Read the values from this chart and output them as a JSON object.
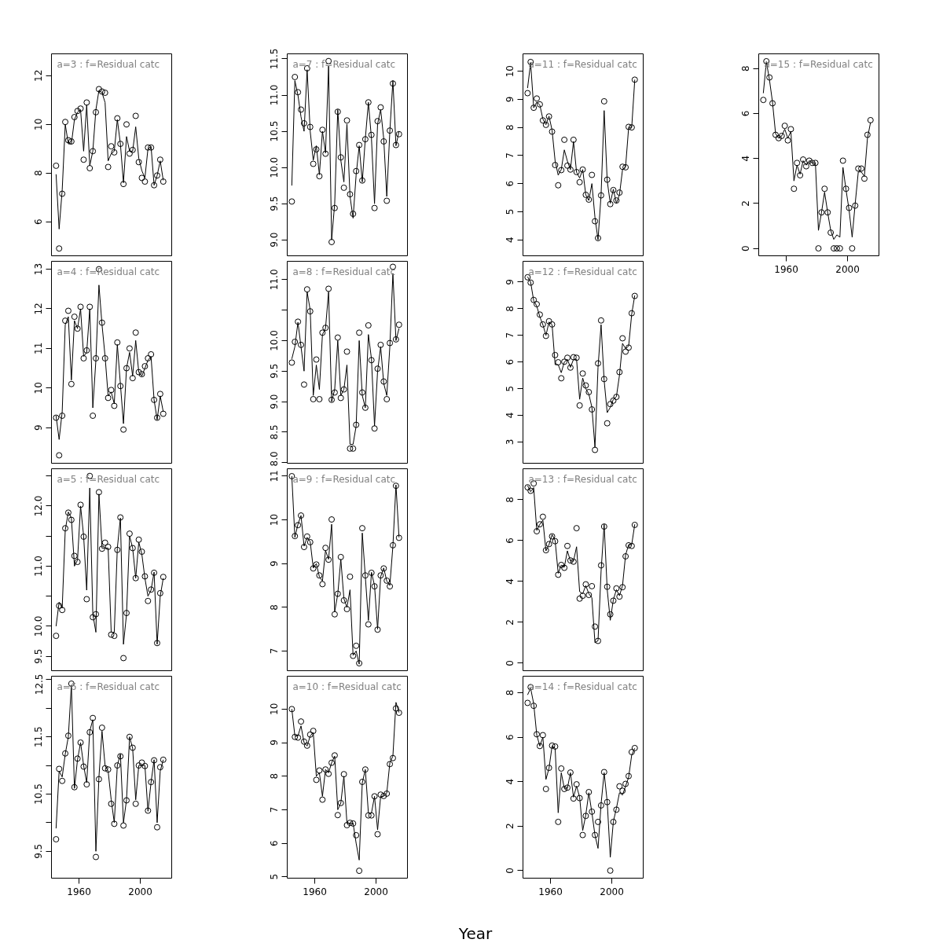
{
  "chart_data": [
    {
      "type": "scatter",
      "title": "a=3 : f=Residual catc",
      "tick_labels": "y",
      "xlim": [
        1942,
        2020.5
      ],
      "ylim": [
        4.6,
        12.9
      ],
      "yticks": [
        6,
        8,
        10,
        12
      ],
      "x": [
        1945,
        1947,
        1949,
        1951,
        1953,
        1955,
        1957,
        1959,
        1961,
        1963,
        1965,
        1967,
        1969,
        1971,
        1973,
        1975,
        1977,
        1979,
        1981,
        1983,
        1985,
        1987,
        1989,
        1991,
        1993,
        1995,
        1997,
        1999,
        2001,
        2003,
        2005,
        2007,
        2009,
        2011,
        2013,
        2015
      ],
      "series": [
        {
          "marker": "circle",
          "color": "#000000",
          "values": [
            8.3,
            4.9,
            7.15,
            10.1,
            9.35,
            9.3,
            10.3,
            10.55,
            10.65,
            8.55,
            10.9,
            8.2,
            8.9,
            10.5,
            11.45,
            11.35,
            11.3,
            8.25,
            9.1,
            8.85,
            10.25,
            9.2,
            7.55,
            10.0,
            8.8,
            8.95,
            10.35,
            8.45,
            7.8,
            7.65,
            9.05,
            9.05,
            7.5,
            7.9,
            8.55,
            7.65
          ]
        },
        {
          "type": "line",
          "color": "#000000",
          "values": [
            7.95,
            5.7,
            7.3,
            10.0,
            9.2,
            9.2,
            10.2,
            10.5,
            10.6,
            8.9,
            10.8,
            8.3,
            8.9,
            10.6,
            11.4,
            11.3,
            10.9,
            8.5,
            8.8,
            8.9,
            10.2,
            9.2,
            7.6,
            9.5,
            8.9,
            8.9,
            9.9,
            8.6,
            8.1,
            7.8,
            9.0,
            9.1,
            7.5,
            7.9,
            8.5,
            7.7
          ]
        }
      ]
    },
    {
      "type": "scatter",
      "title": "a=4 : f=Residual catc",
      "tick_labels": "y",
      "xlim": [
        1942,
        2020.5
      ],
      "ylim": [
        8.1,
        13.2
      ],
      "yticks": [
        9,
        10,
        11,
        12,
        13
      ],
      "x": [
        1945,
        1947,
        1949,
        1951,
        1953,
        1955,
        1957,
        1959,
        1961,
        1963,
        1965,
        1967,
        1969,
        1971,
        1973,
        1975,
        1977,
        1979,
        1981,
        1983,
        1985,
        1987,
        1989,
        1991,
        1993,
        1995,
        1997,
        1999,
        2001,
        2003,
        2005,
        2007,
        2009,
        2011,
        2013,
        2015
      ],
      "series": [
        {
          "marker": "circle",
          "color": "#000000",
          "values": [
            9.25,
            8.3,
            9.3,
            11.7,
            11.95,
            10.1,
            11.8,
            11.5,
            12.05,
            10.75,
            10.95,
            12.05,
            9.3,
            10.75,
            13.0,
            11.65,
            10.75,
            9.75,
            9.95,
            9.55,
            11.15,
            10.05,
            8.95,
            10.5,
            11.0,
            10.25,
            11.4,
            10.4,
            10.35,
            10.55,
            10.75,
            10.85,
            9.7,
            9.25,
            9.85,
            9.35
          ]
        },
        {
          "type": "line",
          "color": "#000000",
          "values": [
            9.3,
            8.7,
            9.4,
            11.6,
            11.8,
            10.2,
            11.7,
            11.5,
            12.0,
            10.8,
            10.9,
            12.0,
            9.5,
            10.7,
            12.6,
            11.6,
            10.8,
            9.8,
            9.9,
            9.6,
            11.1,
            10.1,
            9.1,
            10.5,
            10.9,
            10.3,
            11.2,
            10.4,
            10.3,
            10.5,
            10.7,
            10.8,
            9.7,
            9.2,
            9.8,
            9.4
          ]
        }
      ]
    },
    {
      "type": "scatter",
      "title": "a=5 : f=Residual catc",
      "tick_labels": "y",
      "xlim": [
        1942,
        2020.5
      ],
      "ylim": [
        9.26,
        12.62
      ],
      "yticks": [
        9.5,
        {
          "value": 10,
          "label": "10.0"
        },
        {
          "value": 10.5,
          "label": null
        },
        {
          "value": 11,
          "label": "11.0"
        },
        {
          "value": 11.5,
          "label": null
        },
        {
          "value": 12,
          "label": "12.0"
        },
        {
          "value": 12.5,
          "label": null
        }
      ],
      "x": [
        1945,
        1947,
        1949,
        1951,
        1953,
        1955,
        1957,
        1959,
        1961,
        1963,
        1965,
        1967,
        1969,
        1971,
        1973,
        1975,
        1977,
        1979,
        1981,
        1983,
        1985,
        1987,
        1989,
        1991,
        1993,
        1995,
        1997,
        1999,
        2001,
        2003,
        2005,
        2007,
        2009,
        2011,
        2013,
        2015
      ],
      "series": [
        {
          "marker": "circle",
          "color": "#000000",
          "values": [
            9.84,
            10.34,
            10.27,
            11.63,
            11.89,
            11.77,
            11.17,
            11.07,
            12.02,
            11.49,
            10.45,
            12.5,
            10.15,
            10.2,
            12.23,
            11.29,
            11.39,
            11.32,
            9.86,
            9.84,
            11.27,
            11.81,
            9.47,
            10.22,
            11.54,
            11.3,
            10.8,
            11.44,
            11.24,
            10.83,
            10.42,
            10.61,
            10.89,
            9.72,
            10.55,
            10.82
          ]
        },
        {
          "type": "line",
          "color": "#000000",
          "values": [
            10.0,
            10.4,
            10.3,
            11.6,
            11.9,
            11.8,
            11.0,
            11.1,
            12.0,
            11.5,
            10.6,
            12.3,
            10.2,
            9.9,
            12.2,
            11.3,
            11.3,
            11.3,
            9.9,
            9.9,
            11.3,
            11.8,
            9.7,
            10.2,
            11.5,
            11.3,
            10.8,
            11.4,
            11.2,
            10.8,
            10.5,
            10.6,
            10.9,
            9.7,
            10.5,
            10.8
          ]
        }
      ]
    },
    {
      "type": "scatter",
      "title": "a=6 : f=Residual catc",
      "xlim": [
        1942,
        2020.5
      ],
      "xticks": [
        1960,
        2000
      ],
      "ylim": [
        9.03,
        12.56
      ],
      "yticks": [
        9.5,
        {
          "value": 10,
          "label": null
        },
        10.5,
        {
          "value": 11,
          "label": null
        },
        11.5,
        {
          "value": 12,
          "label": null
        },
        12.5
      ],
      "x": [
        1945,
        1947,
        1949,
        1951,
        1953,
        1955,
        1957,
        1959,
        1961,
        1963,
        1965,
        1967,
        1969,
        1971,
        1973,
        1975,
        1977,
        1979,
        1981,
        1983,
        1985,
        1987,
        1989,
        1991,
        1993,
        1995,
        1997,
        1999,
        2001,
        2003,
        2005,
        2007,
        2009,
        2011,
        2013,
        2015
      ],
      "series": [
        {
          "marker": "circle",
          "color": "#000000",
          "values": [
            9.71,
            10.94,
            10.73,
            11.21,
            11.52,
            12.43,
            10.62,
            11.12,
            11.4,
            10.98,
            10.67,
            11.58,
            11.83,
            9.4,
            10.76,
            11.66,
            10.95,
            10.93,
            10.33,
            9.98,
            11.0,
            11.16,
            9.95,
            10.39,
            11.5,
            11.31,
            10.33,
            11.0,
            11.05,
            10.99,
            10.21,
            10.71,
            11.09,
            9.92,
            10.97,
            11.1
          ]
        },
        {
          "type": "line",
          "color": "#000000",
          "values": [
            9.9,
            10.9,
            10.8,
            11.2,
            11.5,
            12.4,
            10.6,
            11.1,
            11.4,
            11.0,
            10.7,
            11.6,
            11.8,
            9.5,
            10.8,
            11.6,
            11.0,
            10.9,
            10.4,
            10.0,
            11.0,
            11.2,
            10.0,
            10.4,
            11.5,
            11.3,
            10.4,
            11.0,
            11.0,
            11.0,
            10.2,
            10.7,
            11.1,
            10.0,
            10.9,
            11.1
          ]
        }
      ]
    },
    {
      "type": "scatter",
      "title": "a=7 : f=Residual catc",
      "tick_labels": "y",
      "xlim": [
        1942,
        2020.5
      ],
      "ylim": [
        8.78,
        11.57
      ],
      "yticks": [
        {
          "value": 9,
          "label": "9.0"
        },
        9.5,
        {
          "value": 10,
          "label": "10.0"
        },
        10.5,
        {
          "value": 11,
          "label": "11.0"
        },
        11.5
      ],
      "x": [
        1945,
        1947,
        1949,
        1951,
        1953,
        1955,
        1957,
        1959,
        1961,
        1963,
        1965,
        1967,
        1969,
        1971,
        1973,
        1975,
        1977,
        1979,
        1981,
        1983,
        1985,
        1987,
        1989,
        1991,
        1993,
        1995,
        1997,
        1999,
        2001,
        2003,
        2005,
        2007,
        2009,
        2011,
        2013,
        2015
      ],
      "series": [
        {
          "marker": "circle",
          "color": "#000000",
          "values": [
            9.53,
            11.25,
            11.04,
            10.8,
            10.61,
            11.37,
            10.56,
            10.05,
            10.25,
            9.88,
            10.52,
            10.19,
            11.47,
            8.97,
            9.44,
            10.77,
            10.14,
            9.72,
            10.65,
            9.63,
            9.36,
            9.95,
            10.31,
            9.82,
            10.39,
            10.9,
            10.45,
            9.44,
            10.64,
            10.83,
            10.36,
            9.54,
            10.51,
            11.16,
            10.31,
            10.46
          ]
        },
        {
          "type": "line",
          "color": "#000000",
          "values": [
            9.75,
            11.2,
            11.0,
            10.7,
            10.5,
            11.35,
            10.5,
            10.1,
            10.3,
            9.9,
            10.5,
            10.2,
            11.4,
            9.0,
            9.5,
            10.8,
            10.1,
            9.8,
            10.6,
            9.6,
            9.3,
            9.9,
            10.3,
            9.8,
            10.4,
            10.9,
            10.4,
            9.5,
            10.6,
            10.8,
            10.4,
            9.6,
            10.5,
            11.2,
            10.3,
            10.5
          ]
        }
      ]
    },
    {
      "type": "scatter",
      "title": "a=8 : f=Residual catc",
      "tick_labels": "y",
      "xlim": [
        1942,
        2020.5
      ],
      "ylim": [
        7.99,
        11.3
      ],
      "yticks": [
        {
          "value": 8,
          "label": "8.0"
        },
        8.5,
        {
          "value": 9,
          "label": "9.0"
        },
        9.5,
        {
          "value": 10,
          "label": "10.0"
        },
        {
          "value": 10.5,
          "label": null
        },
        {
          "value": 11,
          "label": "11.0"
        }
      ],
      "x": [
        1945,
        1947,
        1949,
        1951,
        1953,
        1955,
        1957,
        1959,
        1961,
        1963,
        1965,
        1967,
        1969,
        1971,
        1973,
        1975,
        1977,
        1979,
        1981,
        1983,
        1985,
        1987,
        1989,
        1991,
        1993,
        1995,
        1997,
        1999,
        2001,
        2003,
        2005,
        2007,
        2009,
        2011,
        2013,
        2015
      ],
      "series": [
        {
          "marker": "circle",
          "color": "#000000",
          "values": [
            9.64,
            9.98,
            10.31,
            9.93,
            9.28,
            10.84,
            10.48,
            9.04,
            9.69,
            9.04,
            10.13,
            10.21,
            10.85,
            9.03,
            9.15,
            10.05,
            9.06,
            9.2,
            9.82,
            8.23,
            8.23,
            8.62,
            10.13,
            9.15,
            8.9,
            10.25,
            9.68,
            8.56,
            9.54,
            9.93,
            9.33,
            9.04,
            9.96,
            11.21,
            10.02,
            10.26
          ]
        },
        {
          "type": "line",
          "color": "#000000",
          "values": [
            9.7,
            9.9,
            10.3,
            9.9,
            9.5,
            10.8,
            10.5,
            9.1,
            9.6,
            9.2,
            10.1,
            10.2,
            10.8,
            9.0,
            9.2,
            10.0,
            9.1,
            9.2,
            9.6,
            8.3,
            8.3,
            8.6,
            10.0,
            9.1,
            8.9,
            10.1,
            9.7,
            8.6,
            9.5,
            9.9,
            9.3,
            9.1,
            9.9,
            11.1,
            10.0,
            10.2
          ]
        }
      ]
    },
    {
      "type": "scatter",
      "title": "a=9 : f=Residual catc",
      "tick_labels": "y",
      "xlim": [
        1942,
        2020.5
      ],
      "ylim": [
        6.55,
        11.17
      ],
      "yticks": [
        7,
        8,
        9,
        10,
        11
      ],
      "x": [
        1945,
        1947,
        1949,
        1951,
        1953,
        1955,
        1957,
        1959,
        1961,
        1963,
        1965,
        1967,
        1969,
        1971,
        1973,
        1975,
        1977,
        1979,
        1981,
        1983,
        1985,
        1987,
        1989,
        1991,
        1993,
        1995,
        1997,
        1999,
        2001,
        2003,
        2005,
        2007,
        2009,
        2011,
        2013,
        2015
      ],
      "series": [
        {
          "marker": "circle",
          "color": "#000000",
          "values": [
            11.0,
            9.63,
            9.88,
            10.1,
            9.38,
            9.62,
            9.49,
            8.89,
            8.98,
            8.73,
            8.53,
            9.36,
            9.09,
            10.01,
            7.84,
            8.31,
            9.15,
            8.16,
            7.96,
            8.7,
            6.89,
            7.12,
            6.72,
            9.81,
            8.73,
            7.61,
            8.79,
            8.48,
            7.49,
            8.73,
            8.89,
            8.61,
            8.48,
            9.42,
            10.78,
            9.59
          ]
        },
        {
          "type": "line",
          "color": "#000000",
          "values": [
            11.0,
            9.6,
            9.9,
            10.1,
            9.4,
            9.6,
            9.5,
            8.9,
            9.0,
            8.7,
            8.6,
            9.3,
            9.1,
            9.9,
            7.9,
            8.3,
            9.1,
            8.2,
            8.0,
            8.4,
            6.9,
            7.0,
            6.7,
            9.7,
            8.7,
            7.7,
            8.8,
            8.5,
            7.5,
            8.7,
            8.9,
            8.6,
            8.5,
            9.4,
            10.8,
            9.6
          ]
        }
      ]
    },
    {
      "type": "scatter",
      "title": "a=10 : f=Residual catc",
      "xlabel": "Year",
      "xlim": [
        1942,
        2020.5
      ],
      "xticks": [
        1960,
        2000
      ],
      "ylim": [
        4.96,
        10.98
      ],
      "yticks": [
        5,
        6,
        7,
        8,
        9,
        10
      ],
      "x": [
        1945,
        1947,
        1949,
        1951,
        1953,
        1955,
        1957,
        1959,
        1961,
        1963,
        1965,
        1967,
        1969,
        1971,
        1973,
        1975,
        1977,
        1979,
        1981,
        1983,
        1985,
        1987,
        1989,
        1991,
        1993,
        1995,
        1997,
        1999,
        2001,
        2003,
        2005,
        2007,
        2009,
        2011,
        2013,
        2015
      ],
      "series": [
        {
          "marker": "circle",
          "color": "#000000",
          "values": [
            10.0,
            9.17,
            9.15,
            9.63,
            9.03,
            8.91,
            9.24,
            9.35,
            7.89,
            8.17,
            7.3,
            8.2,
            8.07,
            8.4,
            8.62,
            6.84,
            7.2,
            8.06,
            6.54,
            6.61,
            6.59,
            6.24,
            5.18,
            7.83,
            8.2,
            6.83,
            6.83,
            7.4,
            6.27,
            7.45,
            7.41,
            7.48,
            8.36,
            8.54,
            10.02,
            9.89
          ]
        },
        {
          "type": "line",
          "color": "#000000",
          "values": [
            10.0,
            9.2,
            9.2,
            9.5,
            9.0,
            8.9,
            9.2,
            9.3,
            8.0,
            8.1,
            7.4,
            8.2,
            8.1,
            8.4,
            8.6,
            7.0,
            7.2,
            8.0,
            6.6,
            6.6,
            6.6,
            6.0,
            5.5,
            7.8,
            8.2,
            6.9,
            6.9,
            7.4,
            6.4,
            7.4,
            7.4,
            7.5,
            8.4,
            8.6,
            10.2,
            9.9
          ]
        }
      ]
    },
    {
      "type": "scatter",
      "title": "a=11 : f=Residual catc",
      "tick_labels": "y",
      "xlim": [
        1942,
        2020.5
      ],
      "ylim": [
        3.43,
        10.62
      ],
      "yticks": [
        4,
        5,
        6,
        7,
        8,
        9,
        10
      ],
      "x": [
        1945,
        1947,
        1949,
        1951,
        1953,
        1955,
        1957,
        1959,
        1961,
        1963,
        1965,
        1967,
        1969,
        1971,
        1973,
        1975,
        1977,
        1979,
        1981,
        1983,
        1985,
        1987,
        1989,
        1991,
        1993,
        1995,
        1997,
        1999,
        2001,
        2003,
        2005,
        2007,
        2009,
        2011,
        2013,
        2015
      ],
      "series": [
        {
          "marker": "circle",
          "color": "#000000",
          "values": [
            9.22,
            10.33,
            8.7,
            9.03,
            8.82,
            8.25,
            8.09,
            8.39,
            7.85,
            6.66,
            5.94,
            6.48,
            7.56,
            6.64,
            6.5,
            7.56,
            6.41,
            6.05,
            6.5,
            5.6,
            5.43,
            6.31,
            4.66,
            4.06,
            5.58,
            8.93,
            6.14,
            5.27,
            5.77,
            5.4,
            5.68,
            6.6,
            6.58,
            8.02,
            8.0,
            9.7
          ]
        },
        {
          "type": "line",
          "color": "#000000",
          "values": [
            9.4,
            10.3,
            8.7,
            8.9,
            8.8,
            8.3,
            8.1,
            8.4,
            7.9,
            6.8,
            6.3,
            6.5,
            7.2,
            6.8,
            6.5,
            7.5,
            6.4,
            6.2,
            6.5,
            5.6,
            5.4,
            6.0,
            4.8,
            4.0,
            5.6,
            8.6,
            6.1,
            5.3,
            5.8,
            5.3,
            5.6,
            6.5,
            6.6,
            8.0,
            8.0,
            9.7
          ]
        }
      ]
    },
    {
      "type": "scatter",
      "title": "a=12 : f=Residual catc",
      "tick_labels": "y",
      "xlim": [
        1942,
        2020.5
      ],
      "ylim": [
        2.2,
        9.78
      ],
      "yticks": [
        3,
        4,
        5,
        6,
        7,
        8,
        9
      ],
      "x": [
        1945,
        1947,
        1949,
        1951,
        1953,
        1955,
        1957,
        1959,
        1961,
        1963,
        1965,
        1967,
        1969,
        1971,
        1973,
        1975,
        1977,
        1979,
        1981,
        1983,
        1985,
        1987,
        1989,
        1991,
        1993,
        1995,
        1997,
        1999,
        2001,
        2003,
        2005,
        2007,
        2009,
        2011,
        2013,
        2015
      ],
      "series": [
        {
          "marker": "circle",
          "color": "#000000",
          "values": [
            9.18,
            8.98,
            8.33,
            8.17,
            7.78,
            7.41,
            6.98,
            7.53,
            7.41,
            6.26,
            5.99,
            5.39,
            6.01,
            6.16,
            5.79,
            6.18,
            6.16,
            4.37,
            5.57,
            5.12,
            4.87,
            4.22,
            2.7,
            5.95,
            7.56,
            5.36,
            3.7,
            4.42,
            4.55,
            4.69,
            5.62,
            6.89,
            6.39,
            6.54,
            7.83,
            8.48
          ]
        },
        {
          "type": "line",
          "color": "#000000",
          "values": [
            9.2,
            9.0,
            8.3,
            8.1,
            7.7,
            7.4,
            7.0,
            7.5,
            7.4,
            5.9,
            5.9,
            5.6,
            6.0,
            6.1,
            5.8,
            6.1,
            6.1,
            4.6,
            5.4,
            5.0,
            4.8,
            4.3,
            2.8,
            5.8,
            7.4,
            5.3,
            4.1,
            4.3,
            4.6,
            4.7,
            5.5,
            6.7,
            6.5,
            6.6,
            7.8,
            8.5
          ]
        }
      ]
    },
    {
      "type": "scatter",
      "title": "a=13 : f=Residual catc",
      "tick_labels": "y",
      "xlim": [
        1942,
        2020.5
      ],
      "ylim": [
        -0.37,
        9.52
      ],
      "yticks": [
        0,
        2,
        4,
        6,
        8
      ],
      "x": [
        1945,
        1947,
        1949,
        1951,
        1953,
        1955,
        1957,
        1959,
        1961,
        1963,
        1965,
        1967,
        1969,
        1971,
        1973,
        1975,
        1977,
        1979,
        1981,
        1983,
        1985,
        1987,
        1989,
        1991,
        1993,
        1995,
        1997,
        1999,
        2001,
        2003,
        2005,
        2007,
        2009,
        2011,
        2013,
        2015
      ],
      "series": [
        {
          "marker": "circle",
          "color": "#000000",
          "values": [
            8.61,
            8.44,
            8.8,
            6.46,
            6.8,
            7.17,
            5.53,
            5.83,
            6.21,
            5.97,
            4.33,
            4.81,
            4.67,
            5.74,
            5.03,
            4.97,
            6.61,
            3.16,
            3.3,
            3.86,
            3.34,
            3.77,
            1.79,
            1.09,
            4.79,
            6.69,
            3.74,
            2.39,
            3.06,
            3.66,
            3.26,
            3.72,
            5.23,
            5.77,
            5.74,
            6.77
          ]
        },
        {
          "type": "line",
          "color": "#000000",
          "values": [
            8.7,
            8.4,
            8.6,
            6.5,
            6.8,
            7.0,
            5.5,
            5.8,
            6.3,
            6.0,
            4.4,
            4.8,
            4.7,
            5.5,
            5.0,
            5.0,
            5.7,
            3.5,
            3.4,
            3.8,
            3.4,
            3.2,
            1.0,
            1.1,
            4.5,
            6.8,
            3.6,
            2.1,
            3.1,
            3.6,
            3.3,
            3.8,
            5.3,
            5.8,
            5.8,
            6.8
          ]
        }
      ]
    },
    {
      "type": "scatter",
      "title": "a=14 : f=Residual catc",
      "xlim": [
        1942,
        2020.5
      ],
      "xticks": [
        1960,
        2000
      ],
      "ylim": [
        -0.34,
        8.74
      ],
      "yticks": [
        0,
        2,
        4,
        6,
        8
      ],
      "x": [
        1945,
        1947,
        1949,
        1951,
        1953,
        1955,
        1957,
        1959,
        1961,
        1963,
        1965,
        1967,
        1969,
        1971,
        1973,
        1975,
        1977,
        1979,
        1981,
        1983,
        1985,
        1987,
        1989,
        1991,
        1993,
        1995,
        1997,
        1999,
        2001,
        2003,
        2005,
        2007,
        2009,
        2011,
        2013,
        2015
      ],
      "series": [
        {
          "marker": "circle",
          "color": "#000000",
          "values": [
            7.54,
            8.25,
            7.41,
            6.13,
            5.6,
            6.09,
            3.67,
            4.62,
            5.62,
            5.58,
            2.19,
            4.59,
            3.67,
            3.73,
            4.41,
            3.24,
            3.88,
            3.26,
            1.6,
            2.46,
            3.53,
            2.65,
            1.6,
            2.19,
            2.93,
            4.43,
            3.08,
            0.0,
            2.19,
            2.74,
            3.79,
            3.59,
            3.9,
            4.25,
            5.33,
            5.51
          ]
        },
        {
          "type": "line",
          "color": "#000000",
          "values": [
            7.9,
            8.2,
            7.5,
            6.1,
            5.6,
            6.0,
            4.1,
            4.6,
            5.6,
            5.5,
            2.6,
            4.4,
            3.7,
            3.7,
            4.4,
            3.3,
            3.8,
            3.3,
            1.8,
            2.5,
            3.5,
            2.6,
            1.6,
            1.0,
            3.0,
            4.4,
            3.1,
            0.6,
            2.2,
            2.8,
            3.5,
            3.4,
            3.8,
            4.2,
            5.2,
            5.5
          ]
        }
      ]
    },
    {
      "type": "scatter",
      "title": "a=15 : f=Residual catc",
      "xlim": [
        1942,
        2020.5
      ],
      "xticks": [
        1960,
        2000
      ],
      "ylim": [
        -0.33,
        8.65
      ],
      "yticks": [
        0,
        2,
        4,
        6,
        8
      ],
      "x": [
        1945,
        1947,
        1949,
        1951,
        1953,
        1955,
        1957,
        1959,
        1961,
        1963,
        1965,
        1967,
        1969,
        1971,
        1973,
        1975,
        1977,
        1979,
        1981,
        1983,
        1985,
        1987,
        1989,
        1991,
        1993,
        1995,
        1997,
        1999,
        2001,
        2003,
        2005,
        2007,
        2009,
        2011,
        2013,
        2015
      ],
      "series": [
        {
          "marker": "circle",
          "color": "#000000",
          "values": [
            6.6,
            8.32,
            7.6,
            6.45,
            5.05,
            4.9,
            5.0,
            5.45,
            4.8,
            5.3,
            2.65,
            3.8,
            3.25,
            3.95,
            3.65,
            3.9,
            3.8,
            3.8,
            0.0,
            1.6,
            2.65,
            1.6,
            0.7,
            0.0,
            0.0,
            0.0,
            3.9,
            2.65,
            1.8,
            0.0,
            1.9,
            3.55,
            3.55,
            3.1,
            5.05,
            5.7
          ]
        },
        {
          "type": "line",
          "color": "#000000",
          "values": [
            6.9,
            8.3,
            7.5,
            6.5,
            5.1,
            4.9,
            5.0,
            5.3,
            4.9,
            5.2,
            3.0,
            3.7,
            3.3,
            3.9,
            3.7,
            3.9,
            3.8,
            3.8,
            0.8,
            1.6,
            2.5,
            1.6,
            0.8,
            0.4,
            0.6,
            0.5,
            3.6,
            2.6,
            1.7,
            0.5,
            2.0,
            3.4,
            3.4,
            3.2,
            4.9,
            5.6
          ]
        }
      ]
    }
  ]
}
